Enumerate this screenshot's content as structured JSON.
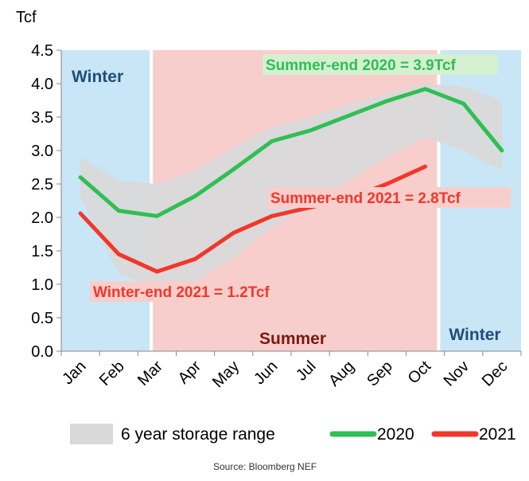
{
  "chart_data": {
    "type": "line",
    "ylabel": "Tcf",
    "ylim": [
      0,
      4.5
    ],
    "yticks": [
      "0.0",
      "0.5",
      "1.0",
      "1.5",
      "2.0",
      "2.5",
      "3.0",
      "3.5",
      "4.0",
      "4.5"
    ],
    "categories": [
      "Jan",
      "Feb",
      "Mar",
      "Apr",
      "May",
      "Jun",
      "Jul",
      "Aug",
      "Sep",
      "Oct",
      "Nov",
      "Dec"
    ],
    "range": {
      "name": "6 year storage range",
      "color": "#d9d9d9",
      "low": [
        2.3,
        1.15,
        0.95,
        1.05,
        1.4,
        1.85,
        2.15,
        2.55,
        2.9,
        3.2,
        3.0,
        2.7
      ],
      "high": [
        2.9,
        2.55,
        2.5,
        2.7,
        3.05,
        3.35,
        3.5,
        3.7,
        3.85,
        4.0,
        3.95,
        3.75
      ]
    },
    "series": [
      {
        "name": "2020",
        "color": "#2fbf54",
        "values": [
          2.6,
          2.1,
          2.02,
          2.32,
          2.72,
          3.14,
          3.3,
          3.52,
          3.74,
          3.92,
          3.7,
          3.0
        ]
      },
      {
        "name": "2021",
        "color": "#f2372a",
        "values": [
          2.06,
          1.45,
          1.19,
          1.38,
          1.77,
          2.02,
          2.15,
          2.28,
          2.5,
          2.76,
          null,
          null
        ]
      }
    ],
    "bands": [
      {
        "label": "Winter",
        "from": -0.5,
        "to": 1.85,
        "color": "#c8e6f5",
        "text_color": "#1f4e79"
      },
      {
        "label": "Summer",
        "from": 1.85,
        "to": 9.35,
        "color": "#f8cecc",
        "text_color": "#7b1a12"
      },
      {
        "label": "Winter",
        "from": 9.35,
        "to": 11.5,
        "color": "#c8e6f5",
        "text_color": "#1f4e79"
      }
    ],
    "annotations": [
      {
        "text": "Summer-end 2020 = 3.9Tcf",
        "color": "#2fbf54",
        "bg": "#d5f0d0"
      },
      {
        "text": "Summer-end 2021 = 2.8Tcf",
        "color": "#f2372a",
        "bg": "#f8cecc"
      },
      {
        "text": "Winter-end 2021 = 1.2Tcf",
        "color": "#f2372a",
        "bg": "#f8cecc"
      }
    ],
    "legend": {
      "range_label": "6 year storage range",
      "series_labels": [
        "2020",
        "2021"
      ],
      "placement": "bottom"
    },
    "source": "Source:  Bloomberg NEF"
  }
}
